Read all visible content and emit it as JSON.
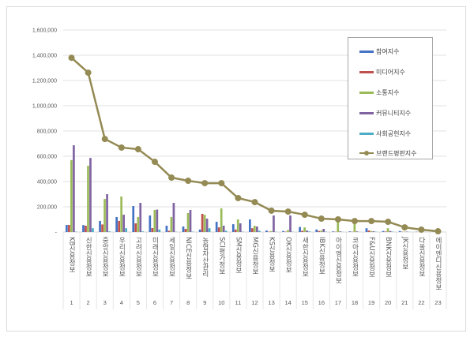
{
  "chart_data": {
    "type": "bar+line",
    "categories": [
      "KB신용정보",
      "신한신용정보",
      "중앙신용정보",
      "우리신용정보",
      "고려신용정보",
      "미래신용정보",
      "세일신용정보",
      "NICE신용정보",
      "농협자산관리",
      "SCI평가정보",
      "SM신용정보",
      "MG신용정보",
      "KS신용정보",
      "OK신용정보",
      "새한신용정보",
      "IBK신용정보",
      "아이엠신용정보",
      "코아신용정보",
      "F&U신용정보",
      "BNK신용정보",
      "JK신용정보",
      "다올신용정보",
      "에이엔디신용정보"
    ],
    "ranks": [
      "1",
      "2",
      "3",
      "4",
      "5",
      "6",
      "7",
      "8",
      "9",
      "10",
      "11",
      "12",
      "13",
      "14",
      "15",
      "16",
      "17",
      "18",
      "19",
      "20",
      "21",
      "22",
      "23"
    ],
    "ylim": [
      0,
      1600000
    ],
    "yticks": [
      "-",
      "200,000",
      "400,000",
      "600,000",
      "800,000",
      "1,000,000",
      "1,200,000",
      "1,400,000",
      "1,600,000"
    ],
    "grid": true,
    "legend_position": "right",
    "series": [
      {
        "name": "참여지수",
        "kind": "bar",
        "color": "#4472c4",
        "values": [
          56000,
          55000,
          88000,
          119000,
          206000,
          131000,
          50000,
          44000,
          20000,
          81000,
          62000,
          100000,
          12000,
          8000,
          40000,
          20000,
          5000,
          5000,
          30000,
          8000,
          8000,
          2000,
          1000
        ]
      },
      {
        "name": "미디어지수",
        "kind": "bar",
        "color": "#c0504d",
        "values": [
          56000,
          50000,
          60000,
          88000,
          69000,
          31000,
          10000,
          25000,
          144000,
          37000,
          20000,
          30000,
          3000,
          3000,
          10000,
          8000,
          2000,
          2000,
          12000,
          4000,
          2000,
          1000,
          500
        ]
      },
      {
        "name": "소통지수",
        "kind": "bar",
        "color": "#9bbb59",
        "values": [
          570000,
          525000,
          262000,
          281000,
          119000,
          175000,
          119000,
          150000,
          137000,
          187000,
          100000,
          50000,
          8000,
          16000,
          37000,
          12000,
          75000,
          70000,
          8000,
          30000,
          3000,
          2000,
          1000
        ]
      },
      {
        "name": "커뮤니티지수",
        "kind": "bar",
        "color": "#8064a2",
        "values": [
          687000,
          587000,
          300000,
          137000,
          231000,
          178000,
          231000,
          175000,
          106000,
          50000,
          69000,
          44000,
          131000,
          131000,
          12000,
          25000,
          5000,
          5000,
          6000,
          8000,
          3000,
          1000,
          500
        ]
      },
      {
        "name": "사회공헌지수",
        "kind": "bar",
        "color": "#4bacc6",
        "values": [
          3000,
          30000,
          5000,
          30000,
          5000,
          20000,
          2000,
          3000,
          30000,
          10000,
          3000,
          10000,
          2000,
          2000,
          5000,
          3000,
          1000,
          1000,
          2000,
          3000,
          1000,
          500,
          500
        ]
      },
      {
        "name": "브랜드평판지수",
        "kind": "line",
        "color": "#948a54",
        "values": [
          1380000,
          1262000,
          737000,
          669000,
          656000,
          556000,
          431000,
          406000,
          387000,
          387000,
          269000,
          237000,
          169000,
          162000,
          137000,
          106000,
          100000,
          87000,
          87000,
          81000,
          37000,
          19000,
          6000
        ]
      }
    ]
  }
}
